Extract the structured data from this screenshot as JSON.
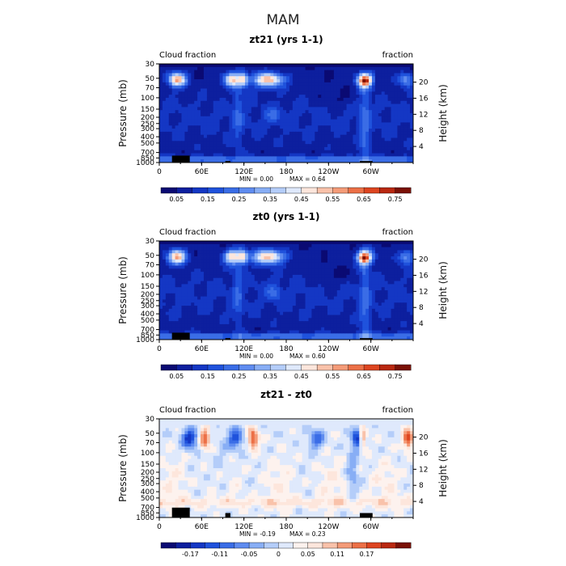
{
  "figure": {
    "title": "MAM"
  },
  "chart_data": [
    {
      "type": "heatmap",
      "title": "zt21 (yrs 1-1)",
      "left_label": "Cloud fraction",
      "right_label": "fraction",
      "xlabel": "",
      "ylabel": "Pressure (mb)",
      "y2label": "Height (km)",
      "x_ticks": [
        "0",
        "60E",
        "120E",
        "180",
        "120W",
        "60W"
      ],
      "y_ticks": [
        "30",
        "50",
        "70",
        "100",
        "150",
        "200",
        "250",
        "300",
        "400",
        "500",
        "700",
        "850",
        "1000"
      ],
      "y2_ticks": [
        "20",
        "16",
        "12",
        "8",
        "4"
      ],
      "min_text": "MIN = 0.00",
      "max_text": "MAX = 0.64",
      "colorbar": {
        "labels": [
          "0.05",
          "0.15",
          "0.25",
          "0.35",
          "0.45",
          "0.55",
          "0.65",
          "0.75"
        ],
        "colors": [
          "#0a0a73",
          "#0d1f9e",
          "#1437c4",
          "#1f52dc",
          "#3a6de6",
          "#5f8cf0",
          "#88aef5",
          "#b4cdf9",
          "#dfe9fc",
          "#fde6dc",
          "#f9c2aa",
          "#f49b78",
          "#ec7047",
          "#dd4520",
          "#b92810",
          "#7a1005"
        ]
      }
    },
    {
      "type": "heatmap",
      "title": "zt0 (yrs 1-1)",
      "left_label": "Cloud fraction",
      "right_label": "fraction",
      "xlabel": "",
      "ylabel": "Pressure (mb)",
      "y2label": "Height (km)",
      "x_ticks": [
        "0",
        "60E",
        "120E",
        "180",
        "120W",
        "60W"
      ],
      "y_ticks": [
        "30",
        "50",
        "70",
        "100",
        "150",
        "200",
        "250",
        "300",
        "400",
        "500",
        "700",
        "850",
        "1000"
      ],
      "y2_ticks": [
        "20",
        "16",
        "12",
        "8",
        "4"
      ],
      "min_text": "MIN = 0.00",
      "max_text": "MAX = 0.60",
      "colorbar": {
        "labels": [
          "0.05",
          "0.15",
          "0.25",
          "0.35",
          "0.45",
          "0.55",
          "0.65",
          "0.75"
        ],
        "colors": [
          "#0a0a73",
          "#0d1f9e",
          "#1437c4",
          "#1f52dc",
          "#3a6de6",
          "#5f8cf0",
          "#88aef5",
          "#b4cdf9",
          "#dfe9fc",
          "#fde6dc",
          "#f9c2aa",
          "#f49b78",
          "#ec7047",
          "#dd4520",
          "#b92810",
          "#7a1005"
        ]
      }
    },
    {
      "type": "heatmap",
      "title": "zt21 - zt0",
      "left_label": "Cloud fraction",
      "right_label": "fraction",
      "xlabel": "",
      "ylabel": "Pressure (mb)",
      "y2label": "Height (km)",
      "x_ticks": [
        "0",
        "60E",
        "120E",
        "180",
        "120W",
        "60W"
      ],
      "y_ticks": [
        "30",
        "50",
        "70",
        "100",
        "150",
        "200",
        "250",
        "300",
        "400",
        "500",
        "700",
        "850",
        "1000"
      ],
      "y2_ticks": [
        "20",
        "16",
        "12",
        "8",
        "4"
      ],
      "min_text": "MIN = -0.19",
      "max_text": "MAX = 0.23",
      "colorbar": {
        "labels": [
          "-0.17",
          "-0.11",
          "-0.05",
          "0",
          "0.05",
          "0.11",
          "0.17"
        ],
        "colors": [
          "#0a0a73",
          "#0d1f9e",
          "#1437c4",
          "#1f52dc",
          "#3a6de6",
          "#5f8cf0",
          "#88aef5",
          "#b4cdf9",
          "#dfe9fc",
          "#fdf2ee",
          "#fde6dc",
          "#f9c2aa",
          "#f49b78",
          "#ec7047",
          "#dd4520",
          "#b92810",
          "#7a1005"
        ]
      }
    }
  ]
}
